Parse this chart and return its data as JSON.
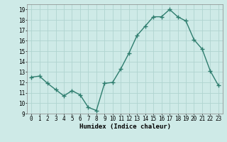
{
  "x": [
    0,
    1,
    2,
    3,
    4,
    5,
    6,
    7,
    8,
    9,
    10,
    11,
    12,
    13,
    14,
    15,
    16,
    17,
    18,
    19,
    20,
    21,
    22,
    23
  ],
  "y": [
    12.5,
    12.6,
    11.9,
    11.3,
    10.7,
    11.2,
    10.8,
    9.6,
    9.3,
    11.9,
    12.0,
    13.3,
    14.8,
    16.5,
    17.4,
    18.3,
    18.3,
    19.0,
    18.3,
    17.9,
    16.1,
    15.2,
    13.1,
    11.7
  ],
  "line_color": "#2e7d6e",
  "marker": "+",
  "marker_size": 4,
  "marker_color": "#2e7d6e",
  "bg_color": "#ceeae7",
  "grid_color": "#b0d4d0",
  "xlabel": "Humidex (Indice chaleur)",
  "ylim": [
    9,
    19.5
  ],
  "yticks": [
    9,
    10,
    11,
    12,
    13,
    14,
    15,
    16,
    17,
    18,
    19
  ],
  "xticks": [
    0,
    1,
    2,
    3,
    4,
    5,
    6,
    7,
    8,
    9,
    10,
    11,
    12,
    13,
    14,
    15,
    16,
    17,
    18,
    19,
    20,
    21,
    22,
    23
  ],
  "xlabel_fontsize": 6.5,
  "tick_fontsize": 5.5,
  "linewidth": 1.0
}
